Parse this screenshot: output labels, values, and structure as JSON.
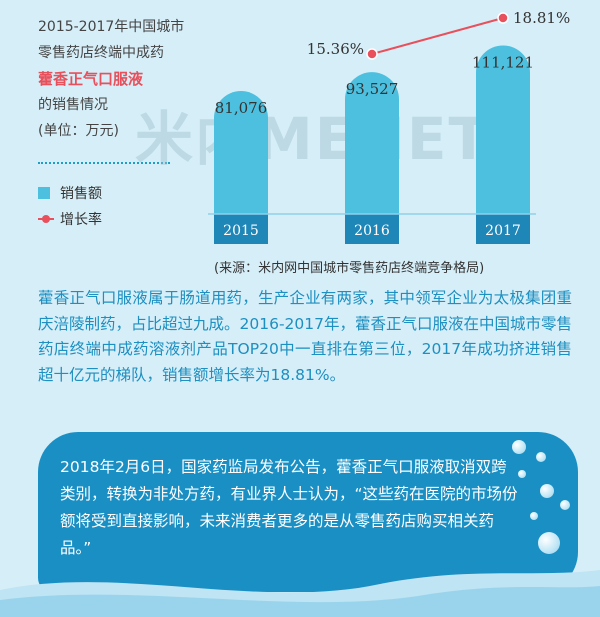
{
  "title": {
    "line1": "2015-2017年中国城市",
    "line2": "零售药店终端中成药",
    "product": "藿香正气口服液",
    "line4": "的销售情况",
    "unit": "(单位：万元)"
  },
  "legend": {
    "sales_label": "销售额",
    "growth_label": "增长率"
  },
  "watermark": "米内MENET",
  "source": "(来源：米内网中国城市零售药店终端竞争格局)",
  "colors": {
    "bar": "#4cc0de",
    "bar_base": "#1f86b8",
    "line": "#e8505b",
    "text_blue": "#1d8fc0",
    "box": "#1a8fc4"
  },
  "chart_data": {
    "type": "bar",
    "categories": [
      "2015",
      "2016",
      "2017"
    ],
    "series": [
      {
        "name": "销售额",
        "values": [
          81076,
          93527,
          111121
        ],
        "value_labels": [
          "81,076",
          "93,527",
          "111,121"
        ]
      },
      {
        "name": "增长率",
        "type": "line",
        "x": [
          "2016",
          "2017"
        ],
        "values": [
          15.36,
          18.81
        ],
        "value_labels": [
          "15.36%",
          "18.81%"
        ]
      }
    ],
    "title": "2015-2017年中国城市零售药店终端中成药藿香正气口服液的销售情况",
    "unit": "(单位：万元)",
    "legend": "left",
    "grid": false
  },
  "paragraph": "藿香正气口服液属于肠道用药，生产企业有两家，其中领军企业为太极集团重庆涪陵制药，占比超过九成。2016-2017年，藿香正气口服液在中国城市零售药店终端中成药溶液剂产品TOP20中一直排在第三位，2017年成功挤进销售超十亿元的梯队，销售额增长率为18.81%。",
  "quote": "2018年2月6日，国家药监局发布公告，藿香正气口服液取消双跨类别，转换为非处方药，有业界人士认为，“这些药在医院的市场份额将受到直接影响，未来消费者更多的是从零售药店购买相关药品。”"
}
